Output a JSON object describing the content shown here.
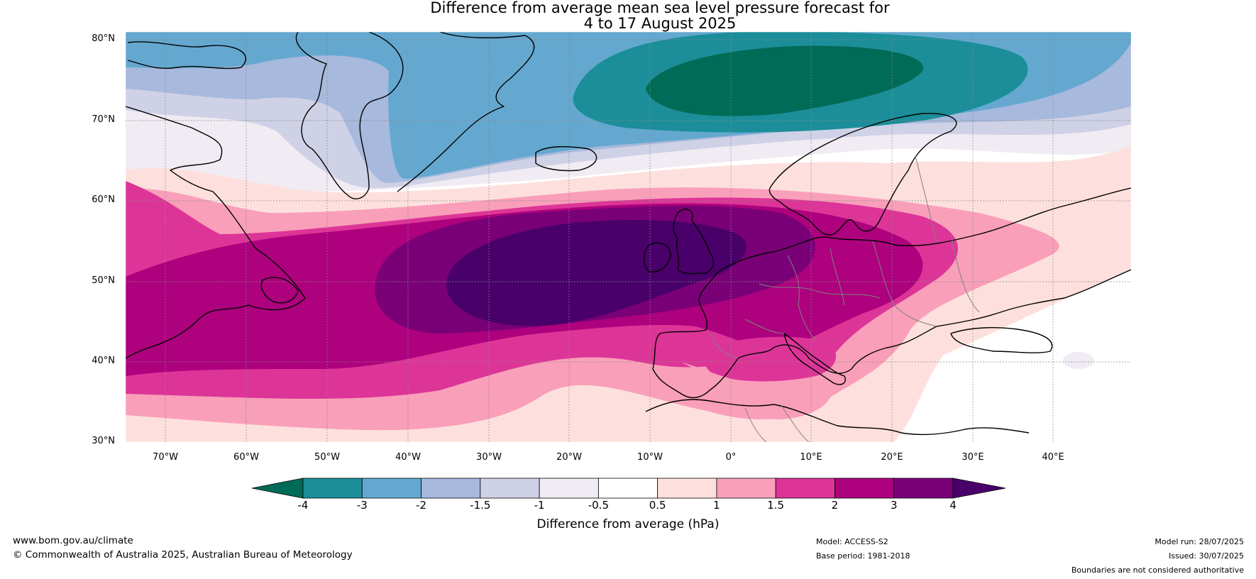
{
  "title": {
    "line1": "Difference from average mean sea level pressure forecast for",
    "line2": "4 to 17 August 2025"
  },
  "map": {
    "lat_labels": [
      "80°N",
      "70°N",
      "60°N",
      "50°N",
      "40°N",
      "30°N"
    ],
    "lon_labels": [
      "70°W",
      "60°W",
      "50°W",
      "40°W",
      "30°W",
      "20°W",
      "10°W",
      "0°",
      "10°E",
      "20°E",
      "30°E",
      "40°E"
    ],
    "colors": {
      "land_outline": "#000000",
      "border": "#808080",
      "grid": "#888888"
    }
  },
  "colorbar": {
    "title": "Difference from average (hPa)",
    "ticks": [
      "-4",
      "-3",
      "-2",
      "-1.5",
      "-1",
      "-0.5",
      "0.5",
      "1",
      "1.5",
      "2",
      "3",
      "4"
    ],
    "colors": [
      "#006b56",
      "#1b8e99",
      "#64a8d0",
      "#a7b9dc",
      "#cfd1e6",
      "#f1ebf3",
      "#ffffff",
      "#fde0dd",
      "#f99fba",
      "#dd3597",
      "#ad017e",
      "#7a0077",
      "#49006a"
    ]
  },
  "footer": {
    "website": "www.bom.gov.au/climate",
    "copyright": "© Commonwealth of Australia 2025, Australian Bureau of Meteorology",
    "model": "Model: ACCESS-S2",
    "base_period": "Base period: 1981-2018",
    "model_run": "Model run: 28/07/2025",
    "issued": "Issued: 30/07/2025",
    "disclaimer": "Boundaries are not considered authoritative"
  }
}
